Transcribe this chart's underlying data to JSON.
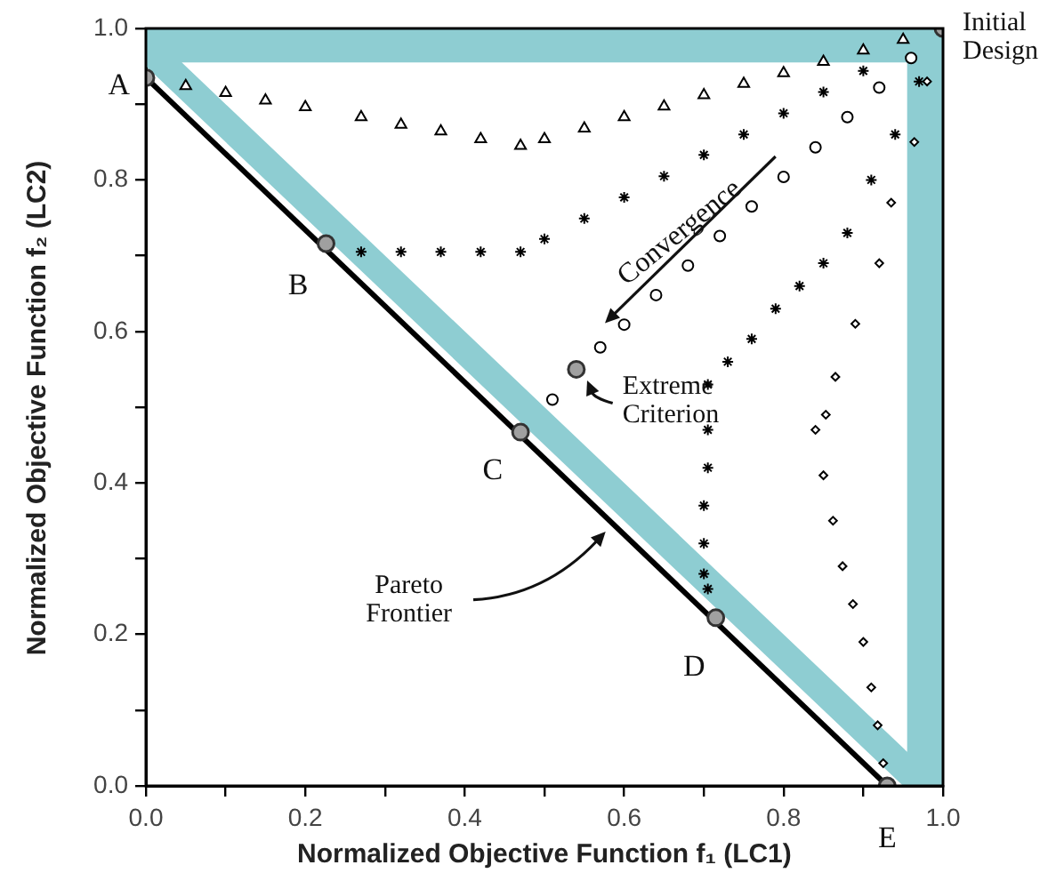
{
  "chart_data": {
    "type": "scatter",
    "xlabel": "Normalized Objective Function f₁ (LC1)",
    "ylabel": "Normalized Objective Function f₂ (LC2)",
    "xlim": [
      0,
      1
    ],
    "ylim": [
      0,
      1
    ],
    "xticks": [
      {
        "value": 0,
        "label": "0.0"
      },
      {
        "value": 0.1,
        "label": null
      },
      {
        "value": 0.2,
        "label": "0.2"
      },
      {
        "value": 0.3,
        "label": null
      },
      {
        "value": 0.4,
        "label": "0.4"
      },
      {
        "value": 0.5,
        "label": null
      },
      {
        "value": 0.6,
        "label": "0.6"
      },
      {
        "value": 0.7,
        "label": null
      },
      {
        "value": 0.8,
        "label": "0.8"
      },
      {
        "value": 0.9,
        "label": null
      },
      {
        "value": 1,
        "label": "1.0"
      }
    ],
    "yticks": [
      {
        "value": 0,
        "label": "0.0"
      },
      {
        "value": 0.1,
        "label": null
      },
      {
        "value": 0.2,
        "label": "0.2"
      },
      {
        "value": 0.3,
        "label": null
      },
      {
        "value": 0.4,
        "label": "0.4"
      },
      {
        "value": 0.5,
        "label": null
      },
      {
        "value": 0.6,
        "label": "0.6"
      },
      {
        "value": 0.7,
        "label": null
      },
      {
        "value": 0.8,
        "label": "0.8"
      },
      {
        "value": 0.9,
        "label": null
      },
      {
        "value": 1,
        "label": "1.0"
      }
    ],
    "grid": false,
    "legend": false,
    "series": [
      {
        "type": "area",
        "color": "#8ecdd2",
        "x": [
          0,
          0,
          1,
          1,
          0.95,
          0,
          0.045,
          0.955,
          0.955,
          0.045,
          0
        ],
        "values": [
          0.95,
          1,
          1,
          0,
          0,
          0.95,
          0.955,
          0.045,
          0.955,
          0.955,
          0.95
        ]
      },
      {
        "type": "line",
        "color": "#000000",
        "marker": "none",
        "x": [
          0,
          0.93
        ],
        "values": [
          0.935,
          0
        ]
      },
      {
        "type": "scatter",
        "color": "#000000",
        "marker": "diamond",
        "x": [
          0.98,
          0.964,
          0.935,
          0.92,
          0.89,
          0.865,
          0.853,
          0.84,
          0.85,
          0.862,
          0.874,
          0.887,
          0.9,
          0.91,
          0.918,
          0.925
        ],
        "values": [
          0.93,
          0.85,
          0.77,
          0.69,
          0.61,
          0.54,
          0.49,
          0.47,
          0.41,
          0.35,
          0.29,
          0.24,
          0.19,
          0.13,
          0.08,
          0.03
        ]
      },
      {
        "type": "scatter",
        "color": "#000000",
        "marker": "cross",
        "x": [
          0.97,
          0.94,
          0.91,
          0.88,
          0.85,
          0.82,
          0.79,
          0.76,
          0.73,
          0.705,
          0.705,
          0.705,
          0.7,
          0.7,
          0.7,
          0.705
        ],
        "values": [
          0.93,
          0.86,
          0.8,
          0.73,
          0.69,
          0.66,
          0.63,
          0.59,
          0.56,
          0.53,
          0.47,
          0.42,
          0.37,
          0.32,
          0.28,
          0.26
        ]
      },
      {
        "type": "scatter",
        "color": "#000000",
        "marker": "circle",
        "x": [
          0.96,
          0.92,
          0.88,
          0.84,
          0.8,
          0.76,
          0.72,
          0.68,
          0.64,
          0.6,
          0.57,
          0.51
        ],
        "values": [
          0.961,
          0.922,
          0.883,
          0.843,
          0.804,
          0.765,
          0.726,
          0.687,
          0.648,
          0.609,
          0.579,
          0.51
        ]
      },
      {
        "type": "scatter",
        "color": "#000000",
        "marker": "cross",
        "x": [
          0.9,
          0.85,
          0.8,
          0.75,
          0.7,
          0.65,
          0.6,
          0.55,
          0.5,
          0.47,
          0.42,
          0.37,
          0.32,
          0.27
        ],
        "values": [
          0.944,
          0.916,
          0.888,
          0.86,
          0.833,
          0.805,
          0.777,
          0.749,
          0.722,
          0.705,
          0.705,
          0.705,
          0.705,
          0.705
        ]
      },
      {
        "type": "scatter",
        "color": "#000000",
        "marker": "triangle",
        "x": [
          0.95,
          0.9,
          0.85,
          0.8,
          0.75,
          0.7,
          0.65,
          0.6,
          0.55,
          0.5,
          0.47,
          0.42,
          0.37,
          0.32,
          0.27,
          0.2,
          0.15,
          0.1,
          0.05
        ],
        "values": [
          0.985,
          0.971,
          0.956,
          0.941,
          0.927,
          0.912,
          0.897,
          0.883,
          0.868,
          0.854,
          0.845,
          0.854,
          0.864,
          0.873,
          0.883,
          0.896,
          0.905,
          0.915,
          0.924
        ]
      },
      {
        "type": "scatter",
        "color": "#a0a0a0",
        "marker": "circle",
        "x": [
          0,
          0.226,
          0.47,
          0.715,
          0.93,
          1,
          0.54
        ],
        "values": [
          0.935,
          0.716,
          0.467,
          0.222,
          0,
          1,
          0.55
        ]
      }
    ],
    "annotations": [
      {
        "text": "A",
        "x": 0,
        "y": 0.935
      },
      {
        "text": "B",
        "x": 0.226,
        "y": 0.716
      },
      {
        "text": "C",
        "x": 0.47,
        "y": 0.467
      },
      {
        "text": "D",
        "x": 0.715,
        "y": 0.222
      },
      {
        "text": "E",
        "x": 0.93,
        "y": 0
      },
      {
        "text": "Initial Design",
        "x": 1,
        "y": 1
      },
      {
        "text": "Extreme Criterion",
        "x": 0.54,
        "y": 0.55
      },
      "Convergence",
      "Pareto Frontier"
    ]
  }
}
